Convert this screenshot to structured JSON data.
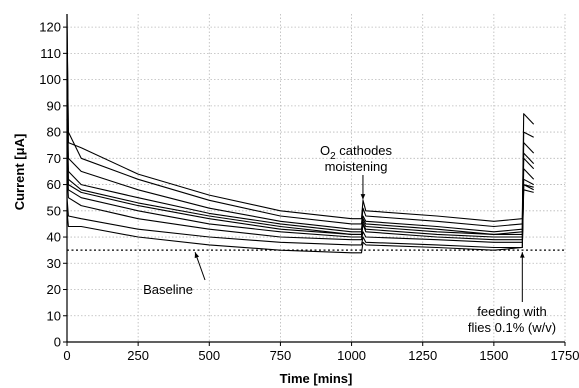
{
  "chart_data": {
    "type": "line",
    "title": "",
    "xlabel": "Time [mins]",
    "ylabel": "Current [μA]",
    "xlim": [
      0,
      1750
    ],
    "ylim": [
      0,
      125
    ],
    "xticks": [
      0,
      250,
      500,
      750,
      1000,
      1250,
      1500,
      1750
    ],
    "yticks": [
      0,
      10,
      20,
      30,
      40,
      50,
      60,
      70,
      80,
      90,
      100,
      110,
      120
    ],
    "grid": "dotted",
    "baseline": 35,
    "legend": "none",
    "annotations": {
      "o2": {
        "line1_prefix": "O",
        "line1_sub": "2",
        "line1_suffix": " cathodes",
        "line2": "moistening",
        "x": 1040,
        "y": 55
      },
      "baseline": {
        "text": "Baseline",
        "x": 450,
        "y": 35
      },
      "feeding": {
        "line1": "feeding with",
        "line2": "flies 0.1% (w/v)",
        "x": 1600,
        "y": 35
      }
    },
    "series": [
      {
        "values": [
          [
            0,
            125
          ],
          [
            5,
            76
          ],
          [
            50,
            74
          ],
          [
            250,
            64
          ],
          [
            500,
            56
          ],
          [
            750,
            50
          ],
          [
            1000,
            47
          ],
          [
            1035,
            47
          ],
          [
            1040,
            54
          ],
          [
            1050,
            50
          ],
          [
            1300,
            48
          ],
          [
            1500,
            46
          ],
          [
            1600,
            47
          ],
          [
            1605,
            87
          ],
          [
            1640,
            83
          ]
        ]
      },
      {
        "values": [
          [
            0,
            120
          ],
          [
            5,
            80
          ],
          [
            50,
            70
          ],
          [
            250,
            62
          ],
          [
            500,
            54
          ],
          [
            750,
            48
          ],
          [
            1000,
            45
          ],
          [
            1035,
            45
          ],
          [
            1040,
            51
          ],
          [
            1050,
            48
          ],
          [
            1300,
            46
          ],
          [
            1500,
            44
          ],
          [
            1600,
            45
          ],
          [
            1605,
            80
          ],
          [
            1640,
            78
          ]
        ]
      },
      {
        "values": [
          [
            0,
            100
          ],
          [
            5,
            70
          ],
          [
            50,
            65
          ],
          [
            250,
            58
          ],
          [
            500,
            51
          ],
          [
            750,
            46
          ],
          [
            1000,
            43
          ],
          [
            1035,
            43
          ],
          [
            1040,
            48
          ],
          [
            1050,
            46
          ],
          [
            1300,
            44
          ],
          [
            1500,
            42
          ],
          [
            1600,
            43
          ],
          [
            1605,
            76
          ],
          [
            1640,
            72
          ]
        ]
      },
      {
        "values": [
          [
            0,
            90
          ],
          [
            5,
            65
          ],
          [
            50,
            60
          ],
          [
            250,
            55
          ],
          [
            500,
            49
          ],
          [
            750,
            45
          ],
          [
            1000,
            42
          ],
          [
            1035,
            42
          ],
          [
            1040,
            47
          ],
          [
            1050,
            45
          ],
          [
            1300,
            43
          ],
          [
            1500,
            41
          ],
          [
            1600,
            42
          ],
          [
            1605,
            72
          ],
          [
            1640,
            68
          ]
        ]
      },
      {
        "values": [
          [
            0,
            85
          ],
          [
            5,
            62
          ],
          [
            50,
            58
          ],
          [
            250,
            53
          ],
          [
            500,
            48
          ],
          [
            750,
            44
          ],
          [
            1000,
            41
          ],
          [
            1035,
            41
          ],
          [
            1040,
            46
          ],
          [
            1050,
            44
          ],
          [
            1300,
            42
          ],
          [
            1500,
            41
          ],
          [
            1600,
            41
          ],
          [
            1605,
            70
          ],
          [
            1640,
            66
          ]
        ]
      },
      {
        "values": [
          [
            0,
            80
          ],
          [
            5,
            60
          ],
          [
            50,
            57
          ],
          [
            250,
            52
          ],
          [
            500,
            47
          ],
          [
            750,
            43
          ],
          [
            1000,
            41
          ],
          [
            1035,
            41
          ],
          [
            1040,
            45
          ],
          [
            1050,
            43
          ],
          [
            1300,
            41
          ],
          [
            1500,
            40
          ],
          [
            1600,
            40
          ],
          [
            1605,
            66
          ],
          [
            1640,
            62
          ]
        ]
      },
      {
        "values": [
          [
            0,
            70
          ],
          [
            5,
            58
          ],
          [
            50,
            55
          ],
          [
            250,
            50
          ],
          [
            500,
            45
          ],
          [
            750,
            42
          ],
          [
            1000,
            40
          ],
          [
            1035,
            40
          ],
          [
            1040,
            45
          ],
          [
            1050,
            42
          ],
          [
            1300,
            40
          ],
          [
            1500,
            39
          ],
          [
            1600,
            39
          ],
          [
            1605,
            62
          ],
          [
            1640,
            60
          ]
        ]
      },
      {
        "values": [
          [
            0,
            65
          ],
          [
            5,
            55
          ],
          [
            50,
            52
          ],
          [
            250,
            47
          ],
          [
            500,
            43
          ],
          [
            750,
            40
          ],
          [
            1000,
            39
          ],
          [
            1035,
            39
          ],
          [
            1040,
            42
          ],
          [
            1050,
            40
          ],
          [
            1300,
            39
          ],
          [
            1500,
            38
          ],
          [
            1600,
            38
          ],
          [
            1605,
            60
          ],
          [
            1640,
            59
          ]
        ]
      },
      {
        "values": [
          [
            0,
            55
          ],
          [
            5,
            48
          ],
          [
            50,
            47
          ],
          [
            250,
            43
          ],
          [
            500,
            40
          ],
          [
            750,
            38
          ],
          [
            1000,
            37
          ],
          [
            1035,
            37
          ],
          [
            1040,
            40
          ],
          [
            1050,
            38
          ],
          [
            1300,
            37
          ],
          [
            1500,
            36
          ],
          [
            1600,
            36
          ],
          [
            1605,
            60
          ],
          [
            1640,
            58
          ]
        ]
      },
      {
        "values": [
          [
            0,
            50
          ],
          [
            5,
            44
          ],
          [
            50,
            44
          ],
          [
            250,
            40
          ],
          [
            500,
            37
          ],
          [
            750,
            35
          ],
          [
            1000,
            34
          ],
          [
            1035,
            34
          ],
          [
            1040,
            38
          ],
          [
            1050,
            37
          ],
          [
            1300,
            36
          ],
          [
            1500,
            35
          ],
          [
            1600,
            36
          ],
          [
            1605,
            58
          ],
          [
            1640,
            57
          ]
        ]
      }
    ]
  }
}
